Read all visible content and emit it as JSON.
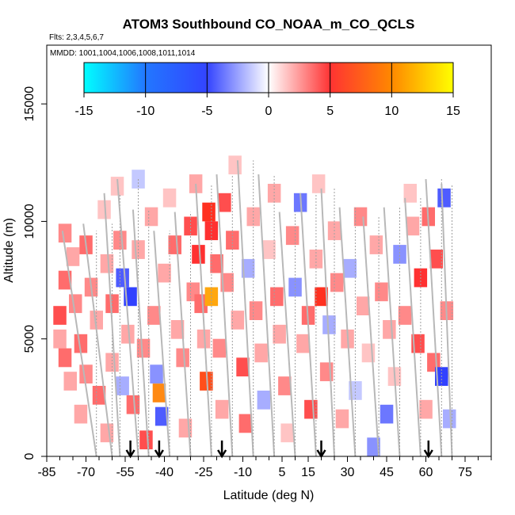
{
  "chart_data": {
    "type": "heatmap",
    "title": "ATOM3 Southbound CO_NOAA_m_CO_QCLS",
    "flights_label": "Flts: 2,3,4,5,6,7",
    "mmdd_label": "MMDD: 1001,1004,1006,1008,1011,1014",
    "xlabel": "Latitude (deg N)",
    "ylabel": "Altitude (m)",
    "xlim": [
      -85,
      85
    ],
    "ylim": [
      0,
      17500
    ],
    "x_ticks": [
      -85,
      -70,
      -55,
      -40,
      -25,
      -10,
      5,
      15,
      30,
      45,
      60,
      75
    ],
    "y_ticks": [
      0,
      5000,
      10000,
      15000
    ],
    "colorbar": {
      "min": -15,
      "max": 15,
      "ticks": [
        -15,
        -10,
        -5,
        0,
        5,
        10,
        15
      ],
      "colors": [
        "#00ffff",
        "#2233ff",
        "#ffffff",
        "#ff2222",
        "#ffff00"
      ]
    },
    "arrow_latitudes": [
      -53,
      -42,
      -18,
      20,
      61
    ],
    "cells": [
      {
        "lat": -80,
        "alt": 6000,
        "v": 6
      },
      {
        "lat": -80,
        "alt": 5000,
        "v": 3
      },
      {
        "lat": -78,
        "alt": 9500,
        "v": 4
      },
      {
        "lat": -78,
        "alt": 7500,
        "v": 5
      },
      {
        "lat": -78,
        "alt": 4200,
        "v": 5
      },
      {
        "lat": -76,
        "alt": 3200,
        "v": 3
      },
      {
        "lat": -75,
        "alt": 8500,
        "v": 3
      },
      {
        "lat": -74,
        "alt": 6500,
        "v": 4
      },
      {
        "lat": -72,
        "alt": 4800,
        "v": 5
      },
      {
        "lat": -72,
        "alt": 1800,
        "v": 3
      },
      {
        "lat": -70,
        "alt": 9000,
        "v": 5
      },
      {
        "lat": -70,
        "alt": 3500,
        "v": 4
      },
      {
        "lat": -68,
        "alt": 7200,
        "v": 4
      },
      {
        "lat": -66,
        "alt": 5800,
        "v": 3
      },
      {
        "lat": -65,
        "alt": 2600,
        "v": 5
      },
      {
        "lat": -63,
        "alt": 10500,
        "v": 2
      },
      {
        "lat": -62,
        "alt": 8200,
        "v": 3
      },
      {
        "lat": -62,
        "alt": 1000,
        "v": 3
      },
      {
        "lat": -60,
        "alt": 6500,
        "v": 5
      },
      {
        "lat": -60,
        "alt": 4000,
        "v": 3
      },
      {
        "lat": -58,
        "alt": 11500,
        "v": 2
      },
      {
        "lat": -57,
        "alt": 9200,
        "v": 4
      },
      {
        "lat": -56,
        "alt": 7600,
        "v": -6
      },
      {
        "lat": -56,
        "alt": 3000,
        "v": -3
      },
      {
        "lat": -54,
        "alt": 5200,
        "v": 3
      },
      {
        "lat": -53,
        "alt": 6800,
        "v": -7
      },
      {
        "lat": -52,
        "alt": 2200,
        "v": 5
      },
      {
        "lat": -50,
        "alt": 11800,
        "v": -2
      },
      {
        "lat": -50,
        "alt": 8800,
        "v": 3
      },
      {
        "lat": -48,
        "alt": 4600,
        "v": 4
      },
      {
        "lat": -47,
        "alt": 700,
        "v": 6
      },
      {
        "lat": -45,
        "alt": 10200,
        "v": 3
      },
      {
        "lat": -44,
        "alt": 6000,
        "v": 4
      },
      {
        "lat": -43,
        "alt": 3500,
        "v": -4
      },
      {
        "lat": -42,
        "alt": 2700,
        "v": 11
      },
      {
        "lat": -41,
        "alt": 1700,
        "v": -6
      },
      {
        "lat": -40,
        "alt": 7800,
        "v": 3
      },
      {
        "lat": -38,
        "alt": 11000,
        "v": 2
      },
      {
        "lat": -36,
        "alt": 9000,
        "v": 5
      },
      {
        "lat": -35,
        "alt": 5400,
        "v": 3
      },
      {
        "lat": -33,
        "alt": 4200,
        "v": 4
      },
      {
        "lat": -32,
        "alt": 1200,
        "v": 3
      },
      {
        "lat": -30,
        "alt": 9800,
        "v": 6
      },
      {
        "lat": -29,
        "alt": 7000,
        "v": 4
      },
      {
        "lat": -28,
        "alt": 11600,
        "v": 3
      },
      {
        "lat": -27,
        "alt": 8600,
        "v": 7
      },
      {
        "lat": -26,
        "alt": 6500,
        "v": 5
      },
      {
        "lat": -25,
        "alt": 5000,
        "v": 3
      },
      {
        "lat": -24,
        "alt": 3200,
        "v": 9
      },
      {
        "lat": -23,
        "alt": 10400,
        "v": 8
      },
      {
        "lat": -22,
        "alt": 9600,
        "v": 7
      },
      {
        "lat": -22,
        "alt": 6800,
        "v": 12
      },
      {
        "lat": -20,
        "alt": 8200,
        "v": 5
      },
      {
        "lat": -19,
        "alt": 4600,
        "v": 4
      },
      {
        "lat": -18,
        "alt": 2000,
        "v": 3
      },
      {
        "lat": -17,
        "alt": 10800,
        "v": 6
      },
      {
        "lat": -16,
        "alt": 7400,
        "v": 4
      },
      {
        "lat": -14,
        "alt": 9200,
        "v": 5
      },
      {
        "lat": -13,
        "alt": 12400,
        "v": 2
      },
      {
        "lat": -12,
        "alt": 5800,
        "v": 3
      },
      {
        "lat": -10,
        "alt": 3800,
        "v": 6
      },
      {
        "lat": -9,
        "alt": 1400,
        "v": 5
      },
      {
        "lat": -8,
        "alt": 8000,
        "v": -3
      },
      {
        "lat": -6,
        "alt": 10200,
        "v": 3
      },
      {
        "lat": -5,
        "alt": 6200,
        "v": 4
      },
      {
        "lat": -3,
        "alt": 4400,
        "v": 3
      },
      {
        "lat": -2,
        "alt": 2400,
        "v": -3
      },
      {
        "lat": 0,
        "alt": 8800,
        "v": 2
      },
      {
        "lat": 2,
        "alt": 11200,
        "v": 3
      },
      {
        "lat": 3,
        "alt": 6800,
        "v": 5
      },
      {
        "lat": 4,
        "alt": 5200,
        "v": 3
      },
      {
        "lat": 6,
        "alt": 3000,
        "v": 4
      },
      {
        "lat": 7,
        "alt": 1000,
        "v": 2
      },
      {
        "lat": 9,
        "alt": 9400,
        "v": 4
      },
      {
        "lat": 10,
        "alt": 7200,
        "v": -4
      },
      {
        "lat": 12,
        "alt": 10800,
        "v": -5
      },
      {
        "lat": 13,
        "alt": 4800,
        "v": 3
      },
      {
        "lat": 15,
        "alt": 6000,
        "v": 5
      },
      {
        "lat": 16,
        "alt": 2000,
        "v": 6
      },
      {
        "lat": 18,
        "alt": 8400,
        "v": 3
      },
      {
        "lat": 19,
        "alt": 11600,
        "v": 2
      },
      {
        "lat": 20,
        "alt": 6800,
        "v": 8
      },
      {
        "lat": 22,
        "alt": 3600,
        "v": 4
      },
      {
        "lat": 23,
        "alt": 5600,
        "v": -3
      },
      {
        "lat": 25,
        "alt": 9600,
        "v": 3
      },
      {
        "lat": 26,
        "alt": 7400,
        "v": 4
      },
      {
        "lat": 28,
        "alt": 1600,
        "v": 3
      },
      {
        "lat": 30,
        "alt": 5000,
        "v": 3
      },
      {
        "lat": 31,
        "alt": 8000,
        "v": -3
      },
      {
        "lat": 33,
        "alt": 2800,
        "v": -2
      },
      {
        "lat": 35,
        "alt": 10200,
        "v": 4
      },
      {
        "lat": 36,
        "alt": 6400,
        "v": 3
      },
      {
        "lat": 38,
        "alt": 4400,
        "v": 2
      },
      {
        "lat": 40,
        "alt": 400,
        "v": -4
      },
      {
        "lat": 41,
        "alt": 9000,
        "v": 3
      },
      {
        "lat": 43,
        "alt": 7000,
        "v": 4
      },
      {
        "lat": 45,
        "alt": 1800,
        "v": -5
      },
      {
        "lat": 46,
        "alt": 5400,
        "v": 3
      },
      {
        "lat": 48,
        "alt": 3400,
        "v": 2
      },
      {
        "lat": 50,
        "alt": 8600,
        "v": -4
      },
      {
        "lat": 52,
        "alt": 6000,
        "v": 4
      },
      {
        "lat": 54,
        "alt": 11200,
        "v": 2
      },
      {
        "lat": 55,
        "alt": 9800,
        "v": 3
      },
      {
        "lat": 57,
        "alt": 4800,
        "v": 6
      },
      {
        "lat": 58,
        "alt": 7600,
        "v": 7
      },
      {
        "lat": 60,
        "alt": 2000,
        "v": 3
      },
      {
        "lat": 61,
        "alt": 10200,
        "v": 5
      },
      {
        "lat": 63,
        "alt": 4000,
        "v": 5
      },
      {
        "lat": 64,
        "alt": 8400,
        "v": 6
      },
      {
        "lat": 66,
        "alt": 3400,
        "v": -7
      },
      {
        "lat": 67,
        "alt": 11000,
        "v": -6
      },
      {
        "lat": 68,
        "alt": 6200,
        "v": 4
      },
      {
        "lat": 69,
        "alt": 1600,
        "v": -3
      }
    ],
    "profiles": [
      {
        "lat_top": -79,
        "lat_bottom": -66,
        "alt_top": 9600
      },
      {
        "lat_top": -71,
        "lat_bottom": -60,
        "alt_top": 9900
      },
      {
        "lat_top": -63,
        "lat_bottom": -57,
        "alt_top": 11200
      },
      {
        "lat_top": -58,
        "lat_bottom": -50,
        "alt_top": 11800
      },
      {
        "lat_top": -52,
        "lat_bottom": -46,
        "alt_top": 10500
      },
      {
        "lat_top": -44,
        "lat_bottom": -38,
        "alt_top": 9600
      },
      {
        "lat_top": -36,
        "lat_bottom": -30,
        "alt_top": 10400
      },
      {
        "lat_top": -28,
        "lat_bottom": -22,
        "alt_top": 11600
      },
      {
        "lat_top": -20,
        "lat_bottom": -14,
        "alt_top": 12000
      },
      {
        "lat_top": -12,
        "lat_bottom": -6,
        "alt_top": 12600
      },
      {
        "lat_top": -4,
        "lat_bottom": 2,
        "alt_top": 12000
      },
      {
        "lat_top": 4,
        "lat_bottom": 10,
        "alt_top": 10400
      },
      {
        "lat_top": 12,
        "lat_bottom": 18,
        "alt_top": 11200
      },
      {
        "lat_top": 20,
        "lat_bottom": 25,
        "alt_top": 11400
      },
      {
        "lat_top": 27,
        "lat_bottom": 33,
        "alt_top": 10600
      },
      {
        "lat_top": 36,
        "lat_bottom": 42,
        "alt_top": 10200
      },
      {
        "lat_top": 44,
        "lat_bottom": 50,
        "alt_top": 10600
      },
      {
        "lat_top": 52,
        "lat_bottom": 58,
        "alt_top": 11000
      },
      {
        "lat_top": 60,
        "lat_bottom": 66,
        "alt_top": 11800
      },
      {
        "lat_top": 66,
        "lat_bottom": 70,
        "alt_top": 11600
      }
    ]
  }
}
